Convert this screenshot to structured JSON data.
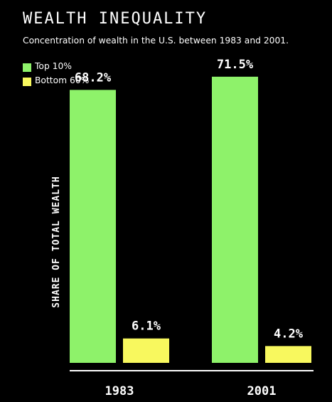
{
  "title": "WEALTH INEQUALITY",
  "subtitle": "Concentration of wealth in the U.S. between 1983 and 2001.",
  "legend": {
    "items": [
      {
        "label": "Top 10%",
        "color": "#8ef26a"
      },
      {
        "label": "Bottom 60%",
        "color": "#f8f85e"
      }
    ]
  },
  "colors": {
    "background": "#000000",
    "text": "#ffffff",
    "top10": "#8ef26a",
    "bottom60": "#f8f85e",
    "axis": "#ffffff"
  },
  "chart_data": {
    "type": "bar",
    "title": "WEALTH INEQUALITY",
    "subtitle": "Concentration of wealth in the U.S. between 1983 and 2001.",
    "xlabel": "",
    "ylabel": "SHARE OF TOTAL WEALTH",
    "categories": [
      "1983",
      "2001"
    ],
    "series": [
      {
        "name": "Top 10%",
        "values": [
          68.2,
          71.5
        ],
        "labels": [
          "68.2%",
          "71.5%"
        ]
      },
      {
        "name": "Bottom 60%",
        "values": [
          6.1,
          4.2
        ],
        "labels": [
          "6.1%",
          "4.2%"
        ]
      }
    ],
    "ylim": [
      0,
      80
    ],
    "grid": false,
    "legend_position": "top-left"
  }
}
